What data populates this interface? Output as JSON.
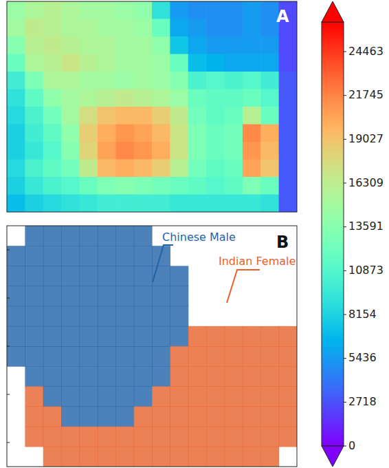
{
  "chart_data": [
    {
      "type": "heatmap",
      "title": "A",
      "tick_labels": false,
      "colorbar_range": [
        0,
        26300
      ],
      "colorbar_ticks": [
        0,
        2718,
        5436,
        8154,
        10873,
        13591,
        16309,
        19027,
        21745,
        24463
      ],
      "cells": [
        [
          14500,
          15500,
          16000,
          15500,
          15000,
          15000,
          14500,
          14000,
          9000,
          5500,
          5000,
          5000,
          5000,
          5500,
          5000,
          2500
        ],
        [
          15000,
          16500,
          16000,
          15500,
          15500,
          15000,
          15000,
          14500,
          12000,
          6000,
          5500,
          5000,
          5000,
          5500,
          5000,
          2500
        ],
        [
          13500,
          16000,
          16500,
          16000,
          15500,
          15500,
          15000,
          15000,
          14000,
          7500,
          6000,
          5500,
          5500,
          5500,
          5500,
          2500
        ],
        [
          12000,
          15500,
          16000,
          17000,
          16000,
          15500,
          15000,
          15000,
          14500,
          12000,
          7000,
          6500,
          6000,
          6000,
          6000,
          2500
        ],
        [
          10000,
          13000,
          15500,
          15500,
          15000,
          15000,
          14500,
          15000,
          14500,
          13500,
          10500,
          11000,
          10500,
          11000,
          10000,
          3000
        ],
        [
          9000,
          11500,
          14000,
          15000,
          15500,
          16000,
          16500,
          16000,
          15500,
          14500,
          12000,
          11500,
          11500,
          12000,
          11000,
          3000
        ],
        [
          8500,
          10500,
          12500,
          15000,
          17500,
          19000,
          19500,
          19500,
          18500,
          16500,
          12500,
          11500,
          12000,
          16000,
          12000,
          3000
        ],
        [
          8000,
          10000,
          11500,
          14000,
          18500,
          20000,
          21000,
          20500,
          19500,
          17000,
          13000,
          12000,
          12500,
          21500,
          20000,
          3000
        ],
        [
          8000,
          9500,
          11000,
          13500,
          18000,
          20500,
          21500,
          21000,
          20000,
          17000,
          13000,
          12000,
          12500,
          21000,
          19500,
          3000
        ],
        [
          8500,
          10500,
          11500,
          12500,
          16500,
          19500,
          20000,
          19500,
          18500,
          16000,
          12500,
          11500,
          12000,
          20500,
          19000,
          3000
        ],
        [
          8000,
          9500,
          10500,
          11000,
          12000,
          13000,
          13500,
          13000,
          12500,
          12000,
          11500,
          11000,
          11500,
          13000,
          12000,
          3000
        ],
        [
          7000,
          8000,
          8500,
          9000,
          9500,
          10000,
          10000,
          10000,
          10000,
          9500,
          9500,
          9500,
          9500,
          9500,
          9000,
          3000
        ]
      ]
    },
    {
      "type": "classification_map",
      "title": "B",
      "tick_labels": false,
      "series": [
        {
          "name": "Chinese Male",
          "color": "#1f63a8"
        },
        {
          "name": "Indian Female",
          "color": "#e8612c"
        }
      ],
      "cells": [
        [
          null,
          "Chinese Male",
          "Chinese Male",
          "Chinese Male",
          "Chinese Male",
          "Chinese Male",
          "Chinese Male",
          "Chinese Male",
          null,
          null,
          null,
          null,
          null,
          null,
          null,
          null
        ],
        [
          "Chinese Male",
          "Chinese Male",
          "Chinese Male",
          "Chinese Male",
          "Chinese Male",
          "Chinese Male",
          "Chinese Male",
          "Chinese Male",
          "Chinese Male",
          null,
          null,
          null,
          null,
          null,
          null,
          null
        ],
        [
          "Chinese Male",
          "Chinese Male",
          "Chinese Male",
          "Chinese Male",
          "Chinese Male",
          "Chinese Male",
          "Chinese Male",
          "Chinese Male",
          "Chinese Male",
          "Chinese Male",
          null,
          null,
          null,
          null,
          null,
          null
        ],
        [
          "Chinese Male",
          "Chinese Male",
          "Chinese Male",
          "Chinese Male",
          "Chinese Male",
          "Chinese Male",
          "Chinese Male",
          "Chinese Male",
          "Chinese Male",
          "Chinese Male",
          null,
          null,
          null,
          null,
          null,
          null
        ],
        [
          "Chinese Male",
          "Chinese Male",
          "Chinese Male",
          "Chinese Male",
          "Chinese Male",
          "Chinese Male",
          "Chinese Male",
          "Chinese Male",
          "Chinese Male",
          "Chinese Male",
          null,
          null,
          null,
          null,
          null,
          null
        ],
        [
          "Chinese Male",
          "Chinese Male",
          "Chinese Male",
          "Chinese Male",
          "Chinese Male",
          "Chinese Male",
          "Chinese Male",
          "Chinese Male",
          "Chinese Male",
          "Chinese Male",
          "Indian Female",
          "Indian Female",
          "Indian Female",
          "Indian Female",
          "Indian Female",
          "Indian Female"
        ],
        [
          "Chinese Male",
          "Chinese Male",
          "Chinese Male",
          "Chinese Male",
          "Chinese Male",
          "Chinese Male",
          "Chinese Male",
          "Chinese Male",
          "Chinese Male",
          "Indian Female",
          "Indian Female",
          "Indian Female",
          "Indian Female",
          "Indian Female",
          "Indian Female",
          "Indian Female"
        ],
        [
          null,
          "Chinese Male",
          "Chinese Male",
          "Chinese Male",
          "Chinese Male",
          "Chinese Male",
          "Chinese Male",
          "Chinese Male",
          "Chinese Male",
          "Indian Female",
          "Indian Female",
          "Indian Female",
          "Indian Female",
          "Indian Female",
          "Indian Female",
          "Indian Female"
        ],
        [
          null,
          "Indian Female",
          "Chinese Male",
          "Chinese Male",
          "Chinese Male",
          "Chinese Male",
          "Chinese Male",
          "Chinese Male",
          "Indian Female",
          "Indian Female",
          "Indian Female",
          "Indian Female",
          "Indian Female",
          "Indian Female",
          "Indian Female",
          "Indian Female"
        ],
        [
          null,
          "Indian Female",
          "Indian Female",
          "Chinese Male",
          "Chinese Male",
          "Chinese Male",
          "Chinese Male",
          "Indian Female",
          "Indian Female",
          "Indian Female",
          "Indian Female",
          "Indian Female",
          "Indian Female",
          "Indian Female",
          "Indian Female",
          "Indian Female"
        ],
        [
          null,
          "Indian Female",
          "Indian Female",
          "Indian Female",
          "Indian Female",
          "Indian Female",
          "Indian Female",
          "Indian Female",
          "Indian Female",
          "Indian Female",
          "Indian Female",
          "Indian Female",
          "Indian Female",
          "Indian Female",
          "Indian Female",
          "Indian Female"
        ],
        [
          null,
          null,
          "Indian Female",
          "Indian Female",
          "Indian Female",
          "Indian Female",
          "Indian Female",
          "Indian Female",
          "Indian Female",
          "Indian Female",
          "Indian Female",
          "Indian Female",
          "Indian Female",
          "Indian Female",
          "Indian Female",
          null
        ]
      ]
    }
  ]
}
